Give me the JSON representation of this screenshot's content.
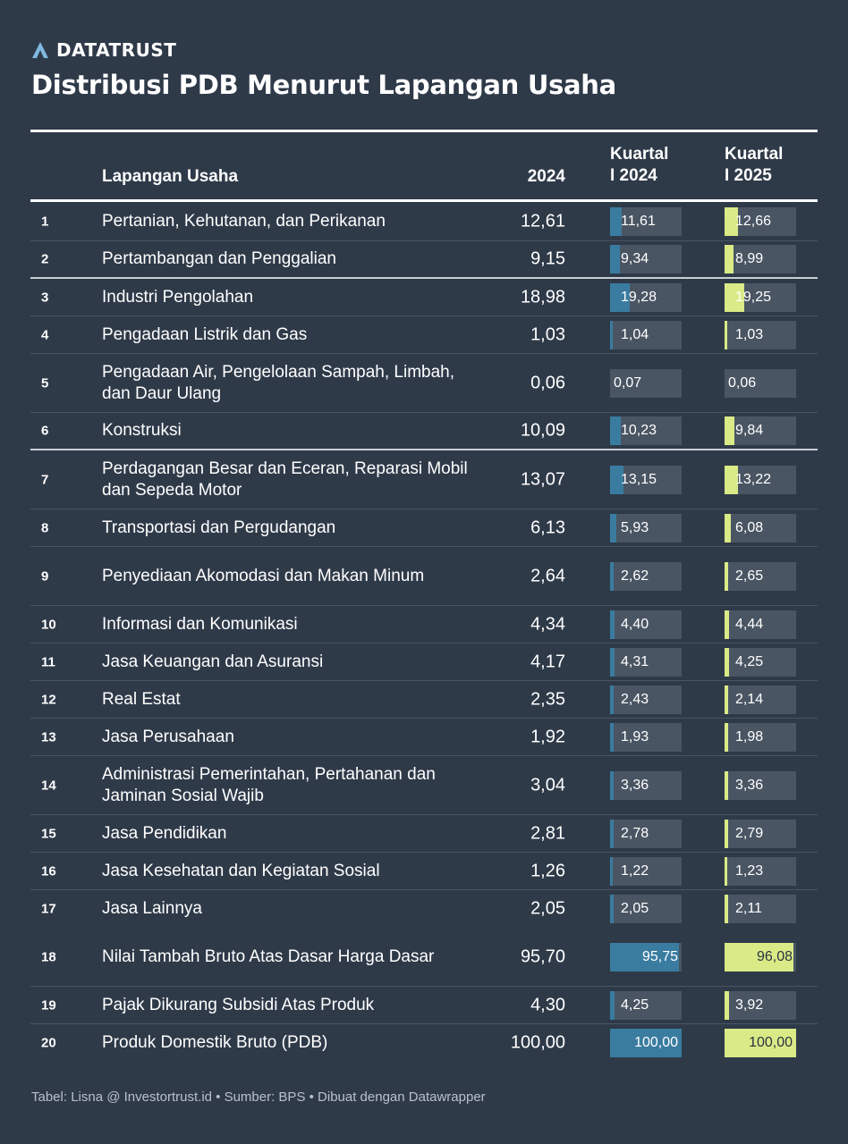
{
  "brand": {
    "name": "DATATRUST",
    "icon": "datatrust-logo-icon"
  },
  "title": "Distribusi PDB Menurut Lapangan Usaha",
  "colors": {
    "background": "#2f3a49",
    "q1_bar": "#3a7ca0",
    "q2_bar": "#d9ea86",
    "bar_track": "#4a5563"
  },
  "headers": {
    "category": "Lapangan Usaha",
    "y2024": "2024",
    "q1_line1": "Kuartal",
    "q1_line2": "I 2024",
    "q2_line1": "Kuartal",
    "q2_line2": "I 2025"
  },
  "chart_data": {
    "type": "table",
    "columns": [
      "",
      "Lapangan Usaha",
      "2024",
      "Kuartal I 2024",
      "Kuartal I 2025"
    ],
    "rows": [
      {
        "no": "1",
        "category": "Pertanian, Kehutanan, dan Perikanan",
        "y2024": "12,61",
        "q1_2024": "11,61",
        "q1_2025": "12,66",
        "q1_num": 11.61,
        "q2_num": 12.66
      },
      {
        "no": "2",
        "category": "Pertambangan dan Penggalian",
        "y2024": "9,15",
        "q1_2024": "9,34",
        "q1_2025": "8,99",
        "q1_num": 9.34,
        "q2_num": 8.99
      },
      {
        "no": "3",
        "category": "Industri Pengolahan",
        "y2024": "18,98",
        "q1_2024": "19,28",
        "q1_2025": "19,25",
        "q1_num": 19.28,
        "q2_num": 19.25
      },
      {
        "no": "4",
        "category": "Pengadaan Listrik dan Gas",
        "y2024": "1,03",
        "q1_2024": "1,04",
        "q1_2025": "1,03",
        "q1_num": 1.04,
        "q2_num": 1.03
      },
      {
        "no": "5",
        "category": "Pengadaan Air, Pengelolaan Sampah, Limbah, dan Daur Ulang",
        "y2024": "0,06",
        "q1_2024": "0,07",
        "q1_2025": "0,06",
        "q1_num": 0.07,
        "q2_num": 0.06
      },
      {
        "no": "6",
        "category": "Konstruksi",
        "y2024": "10,09",
        "q1_2024": "10,23",
        "q1_2025": "9,84",
        "q1_num": 10.23,
        "q2_num": 9.84
      },
      {
        "no": "7",
        "category": "Perdagangan Besar dan Eceran, Reparasi Mobil dan Sepeda Motor",
        "y2024": "13,07",
        "q1_2024": "13,15",
        "q1_2025": "13,22",
        "q1_num": 13.15,
        "q2_num": 13.22
      },
      {
        "no": "8",
        "category": "Transportasi dan Pergudangan",
        "y2024": "6,13",
        "q1_2024": "5,93",
        "q1_2025": "6,08",
        "q1_num": 5.93,
        "q2_num": 6.08
      },
      {
        "no": "9",
        "category": "Penyediaan Akomodasi dan Makan Minum",
        "y2024": "2,64",
        "q1_2024": "2,62",
        "q1_2025": "2,65",
        "q1_num": 2.62,
        "q2_num": 2.65
      },
      {
        "no": "10",
        "category": "Informasi dan Komunikasi",
        "y2024": "4,34",
        "q1_2024": "4,40",
        "q1_2025": "4,44",
        "q1_num": 4.4,
        "q2_num": 4.44
      },
      {
        "no": "11",
        "category": "Jasa Keuangan dan Asuransi",
        "y2024": "4,17",
        "q1_2024": "4,31",
        "q1_2025": "4,25",
        "q1_num": 4.31,
        "q2_num": 4.25
      },
      {
        "no": "12",
        "category": "Real Estat",
        "y2024": "2,35",
        "q1_2024": "2,43",
        "q1_2025": "2,14",
        "q1_num": 2.43,
        "q2_num": 2.14
      },
      {
        "no": "13",
        "category": "Jasa Perusahaan",
        "y2024": "1,92",
        "q1_2024": "1,93",
        "q1_2025": "1,98",
        "q1_num": 1.93,
        "q2_num": 1.98
      },
      {
        "no": "14",
        "category": "Administrasi Pemerintahan, Pertahanan dan Jaminan Sosial Wajib",
        "y2024": "3,04",
        "q1_2024": "3,36",
        "q1_2025": "3,36",
        "q1_num": 3.36,
        "q2_num": 3.36
      },
      {
        "no": "15",
        "category": "Jasa Pendidikan",
        "y2024": "2,81",
        "q1_2024": "2,78",
        "q1_2025": "2,79",
        "q1_num": 2.78,
        "q2_num": 2.79
      },
      {
        "no": "16",
        "category": "Jasa Kesehatan dan Kegiatan Sosial",
        "y2024": "1,26",
        "q1_2024": "1,22",
        "q1_2025": "1,23",
        "q1_num": 1.22,
        "q2_num": 1.23
      },
      {
        "no": "17",
        "category": "Jasa Lainnya",
        "y2024": "2,05",
        "q1_2024": "2,05",
        "q1_2025": "2,11",
        "q1_num": 2.05,
        "q2_num": 2.11
      },
      {
        "no": "18",
        "category": "Nilai Tambah Bruto Atas Dasar Harga Dasar",
        "y2024": "95,70",
        "q1_2024": "95,75",
        "q1_2025": "96,08",
        "q1_num": 95.75,
        "q2_num": 96.08
      },
      {
        "no": "19",
        "category": "Pajak Dikurang Subsidi Atas Produk",
        "y2024": "4,30",
        "q1_2024": "4,25",
        "q1_2025": "3,92",
        "q1_num": 4.25,
        "q2_num": 3.92
      },
      {
        "no": "20",
        "category": "Produk Domestik Bruto (PDB)",
        "y2024": "100,00",
        "q1_2024": "100,00",
        "q1_2025": "100,00",
        "q1_num": 100.0,
        "q2_num": 100.0
      }
    ],
    "bar_max": 100
  },
  "footer": "Tabel: Lisna @ Investortrust.id • Sumber: BPS • Dibuat dengan Datawrapper"
}
